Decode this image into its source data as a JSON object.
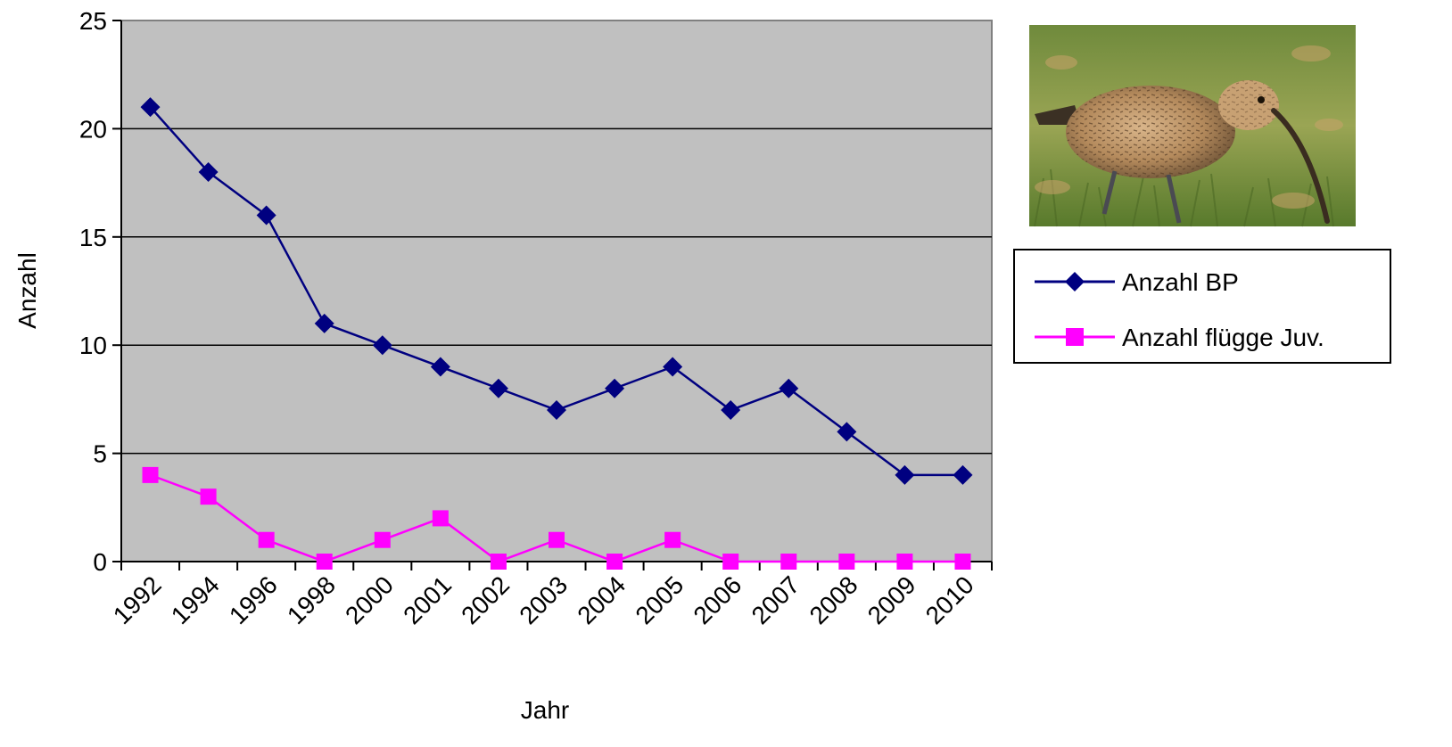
{
  "chart_data": {
    "type": "line",
    "x": [
      "1992",
      "1994",
      "1996",
      "1998",
      "2000",
      "2001",
      "2002",
      "2003",
      "2004",
      "2005",
      "2006",
      "2007",
      "2008",
      "2009",
      "2010"
    ],
    "series": [
      {
        "name": "Anzahl BP",
        "values": [
          21,
          18,
          16,
          11,
          10,
          9,
          8,
          7,
          8,
          9,
          7,
          8,
          6,
          4,
          4
        ],
        "color": "#000080",
        "marker": "diamond"
      },
      {
        "name": "Anzahl flügge Juv.",
        "values": [
          4,
          3,
          1,
          0,
          1,
          2,
          0,
          1,
          0,
          1,
          0,
          0,
          0,
          0,
          0
        ],
        "color": "#FF00FF",
        "marker": "square"
      }
    ],
    "xlabel": "Jahr",
    "ylabel": "Anzahl",
    "ylim": [
      0,
      25
    ],
    "yticks": [
      "0",
      "5",
      "10",
      "15",
      "20",
      "25"
    ],
    "grid": "horizontal",
    "plot_background": "#C0C0C0",
    "legend_position": "right",
    "image": "curlew-photo"
  }
}
